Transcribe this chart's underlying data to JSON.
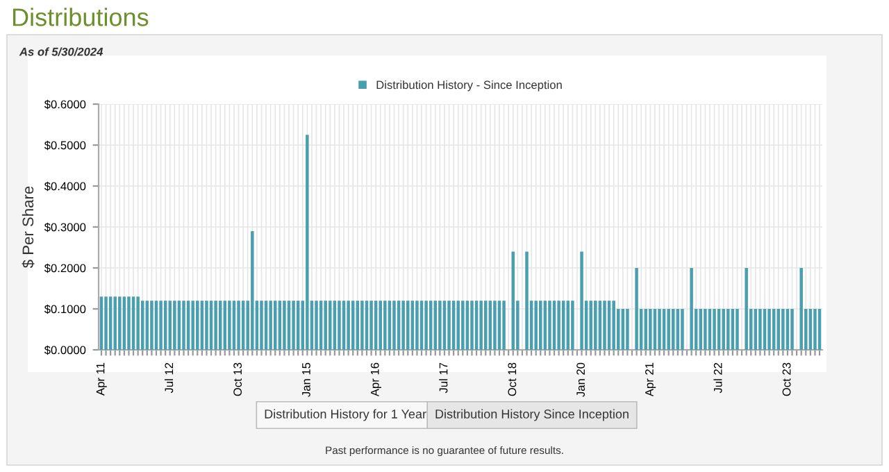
{
  "chart_data": {
    "type": "bar",
    "title": "Distributions",
    "subtitle": "As of 5/30/2024",
    "ylabel": "$ Per Share",
    "categories": [
      "Apr 11",
      null,
      null,
      null,
      null,
      null,
      null,
      null,
      null,
      null,
      null,
      null,
      null,
      null,
      null,
      "Jul 12",
      null,
      null,
      null,
      null,
      null,
      null,
      null,
      null,
      null,
      null,
      null,
      null,
      null,
      null,
      "Oct 13",
      null,
      null,
      null,
      null,
      null,
      null,
      null,
      null,
      null,
      null,
      null,
      null,
      null,
      null,
      "Jan 15",
      null,
      null,
      null,
      null,
      null,
      null,
      null,
      null,
      null,
      null,
      null,
      null,
      null,
      null,
      "Apr 16",
      null,
      null,
      null,
      null,
      null,
      null,
      null,
      null,
      null,
      null,
      null,
      null,
      null,
      null,
      "Jul 17",
      null,
      null,
      null,
      null,
      null,
      null,
      null,
      null,
      null,
      null,
      null,
      null,
      null,
      null,
      "Oct 18",
      null,
      null,
      null,
      null,
      null,
      null,
      null,
      null,
      null,
      null,
      null,
      null,
      null,
      null,
      "Jan 20",
      null,
      null,
      null,
      null,
      null,
      null,
      null,
      null,
      null,
      null,
      null,
      null,
      null,
      null,
      "Apr 21",
      null,
      null,
      null,
      null,
      null,
      null,
      null,
      null,
      null,
      null,
      null,
      null,
      null,
      null,
      "Jul 22",
      null,
      null,
      null,
      null,
      null,
      null,
      null,
      null,
      null,
      null,
      null,
      null,
      null,
      null,
      "Oct 23",
      null,
      null,
      null,
      null,
      null,
      null,
      null
    ],
    "series": [
      {
        "name": "Distribution History - Since Inception",
        "color": "#4a9fae",
        "values": [
          0.13,
          0.13,
          0.13,
          0.13,
          0.13,
          0.13,
          0.13,
          0.13,
          0.13,
          0.12,
          0.12,
          0.12,
          0.12,
          0.12,
          0.12,
          0.12,
          0.12,
          0.12,
          0.12,
          0.12,
          0.12,
          0.12,
          0.12,
          0.12,
          0.12,
          0.12,
          0.12,
          0.12,
          0.12,
          0.12,
          0.12,
          0.12,
          0.12,
          0.29,
          0.12,
          0.12,
          0.12,
          0.12,
          0.12,
          0.12,
          0.12,
          0.12,
          0.12,
          0.12,
          0.12,
          0.525,
          0.12,
          0.12,
          0.12,
          0.12,
          0.12,
          0.12,
          0.12,
          0.12,
          0.12,
          0.12,
          0.12,
          0.12,
          0.12,
          0.12,
          0.12,
          0.12,
          0.12,
          0.12,
          0.12,
          0.12,
          0.12,
          0.12,
          0.12,
          0.12,
          0.12,
          0.12,
          0.12,
          0.12,
          0.12,
          0.12,
          0.12,
          0.12,
          0.12,
          0.12,
          0.12,
          0.12,
          0.12,
          0.12,
          0.12,
          0.12,
          0.12,
          0.12,
          0.12,
          null,
          0.24,
          0.12,
          null,
          0.24,
          0.12,
          0.12,
          0.12,
          0.12,
          0.12,
          0.12,
          0.12,
          0.12,
          0.12,
          0.12,
          null,
          0.24,
          0.12,
          0.12,
          0.12,
          0.12,
          0.12,
          0.12,
          0.12,
          0.1,
          0.1,
          0.1,
          null,
          0.2,
          0.1,
          0.1,
          0.1,
          0.1,
          0.1,
          0.1,
          0.1,
          0.1,
          0.1,
          0.1,
          null,
          0.2,
          0.1,
          0.1,
          0.1,
          0.1,
          0.1,
          0.1,
          0.1,
          0.1,
          0.1,
          0.1,
          null,
          0.2,
          0.1,
          0.1,
          0.1,
          0.1,
          0.1,
          0.1,
          0.1,
          0.1,
          0.1,
          0.1,
          null,
          0.2,
          0.1,
          0.1,
          0.1,
          0.1
        ]
      }
    ],
    "ylim": [
      0,
      0.6
    ],
    "yticks": [
      {
        "value": 0,
        "label": "$0.0000"
      },
      {
        "value": 0.1,
        "label": "$0.1000"
      },
      {
        "value": 0.2,
        "label": "$0.2000"
      },
      {
        "value": 0.3,
        "label": "$0.3000"
      },
      {
        "value": 0.4,
        "label": "$0.4000"
      },
      {
        "value": 0.5,
        "label": "$0.5000"
      },
      {
        "value": 0.6,
        "label": "$0.6000"
      }
    ],
    "grid": true,
    "legend": "top",
    "annotations": [
      "Distribution History for 1 Year",
      "Distribution History Since Inception",
      "Past performance is no guarantee of future results."
    ]
  }
}
